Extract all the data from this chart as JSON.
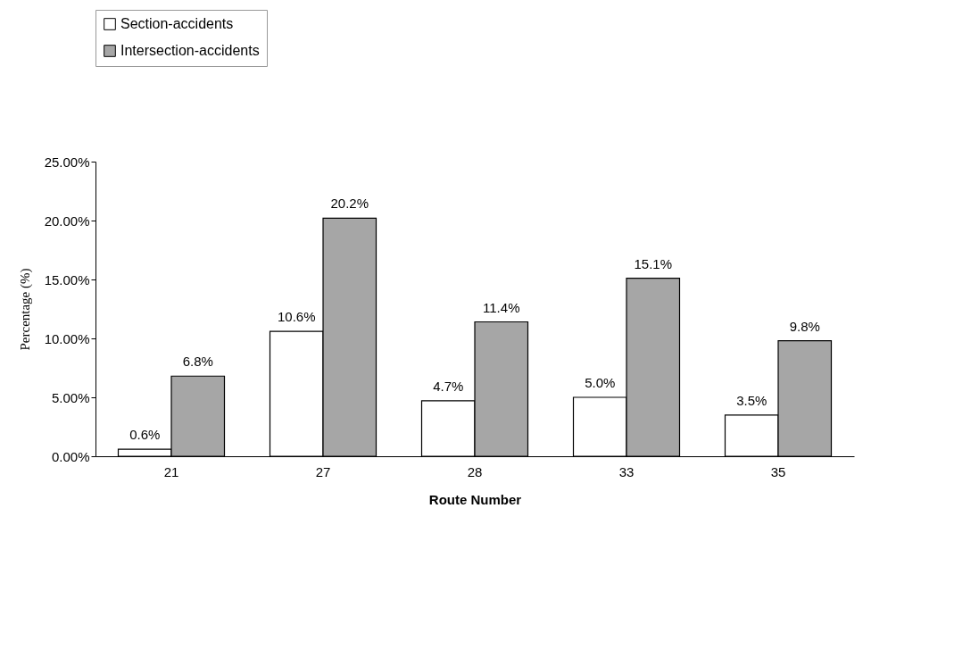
{
  "chart_data": {
    "type": "bar",
    "xlabel": "Route Number",
    "ylabel": "Percentage (%)",
    "categories": [
      "21",
      "27",
      "28",
      "33",
      "35"
    ],
    "series": [
      {
        "name": "Section-accidents",
        "color": "#ffffff",
        "values": [
          0.6,
          10.6,
          4.7,
          5.0,
          3.5
        ],
        "value_labels": [
          "0.6%",
          "10.6%",
          "4.7%",
          "5.0%",
          "3.5%"
        ]
      },
      {
        "name": "Intersection-accidents",
        "color": "#a6a6a6",
        "values": [
          6.8,
          20.2,
          11.4,
          15.1,
          9.8
        ],
        "value_labels": [
          "6.8%",
          "20.2%",
          "11.4%",
          "15.1%",
          "9.8%"
        ]
      }
    ],
    "ylim": [
      0,
      25
    ],
    "yticks": [
      {
        "value": 0,
        "label": "0.00%"
      },
      {
        "value": 5,
        "label": "5.00%"
      },
      {
        "value": 10,
        "label": "10.00%"
      },
      {
        "value": 15,
        "label": "15.00%"
      },
      {
        "value": 20,
        "label": "20.00%"
      },
      {
        "value": 25,
        "label": "25.00%"
      }
    ],
    "grid": false,
    "legend": "top left"
  }
}
